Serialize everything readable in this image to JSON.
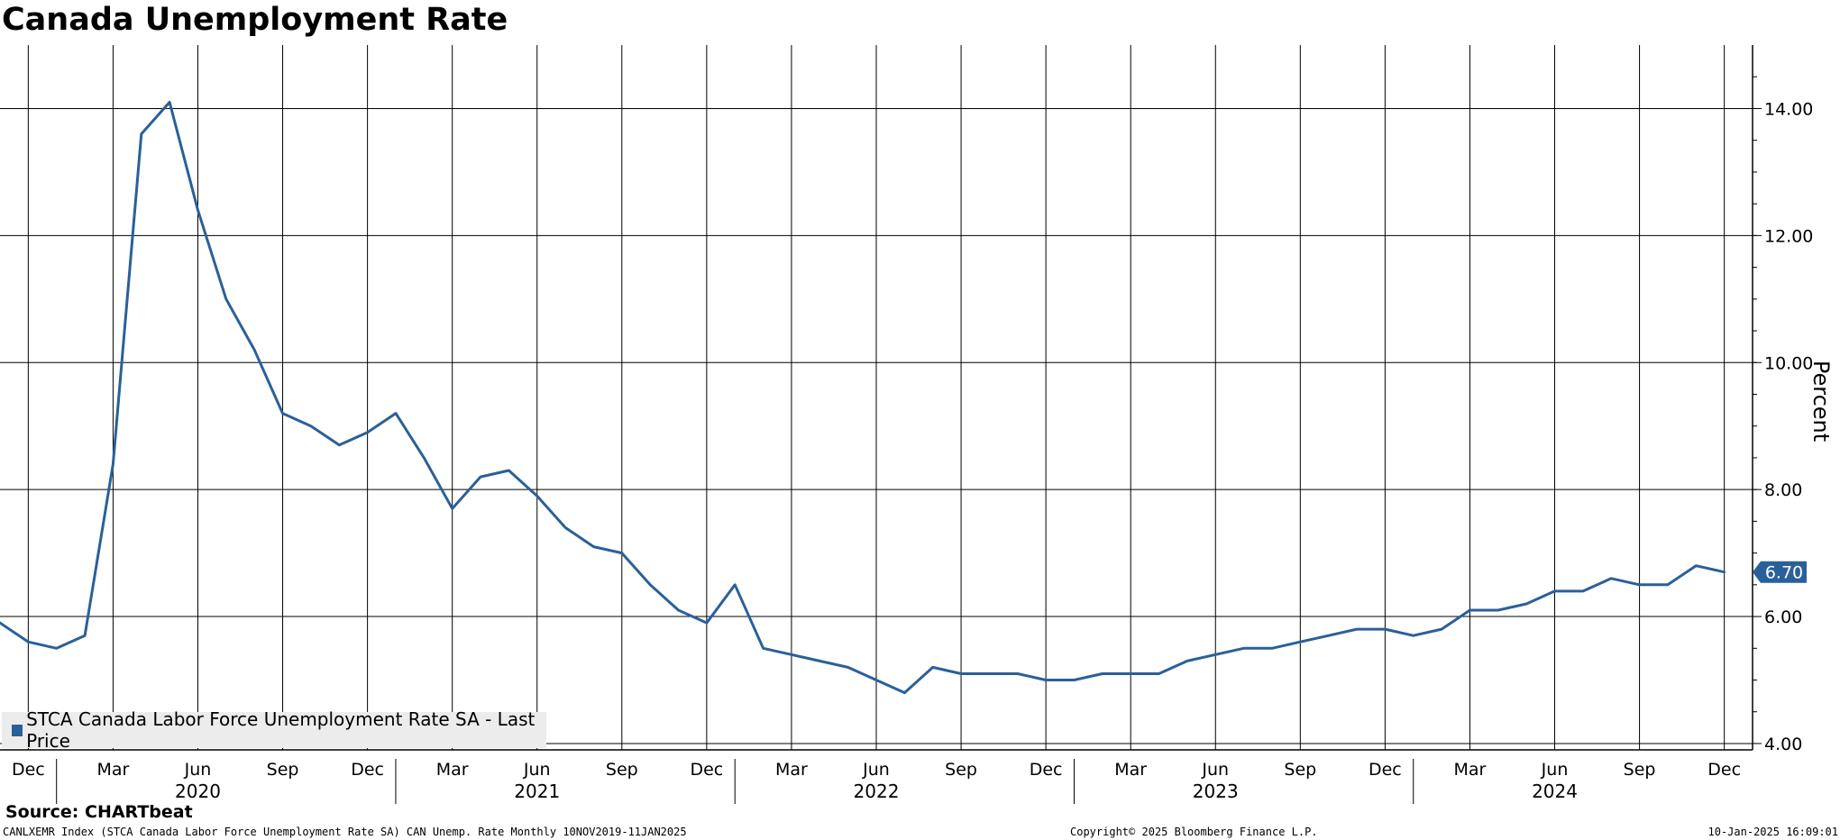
{
  "chart_data": {
    "type": "line",
    "title": "Canada Unemployment Rate",
    "ylabel": "Percent",
    "ylim": [
      3.9,
      15.0
    ],
    "y_ticks": [
      4,
      6,
      8,
      10,
      12,
      14
    ],
    "y_tick_labels": [
      "4.00",
      "6.00",
      "8.00",
      "10.00",
      "12.00",
      "14.00"
    ],
    "x_range": [
      "2019-11",
      "2025-01"
    ],
    "x_ticks": [
      {
        "date": "2019-12",
        "label": "Dec"
      },
      {
        "date": "2020-03",
        "label": "Mar"
      },
      {
        "date": "2020-06",
        "label": "Jun"
      },
      {
        "date": "2020-09",
        "label": "Sep"
      },
      {
        "date": "2020-12",
        "label": "Dec"
      },
      {
        "date": "2021-03",
        "label": "Mar"
      },
      {
        "date": "2021-06",
        "label": "Jun"
      },
      {
        "date": "2021-09",
        "label": "Sep"
      },
      {
        "date": "2021-12",
        "label": "Dec"
      },
      {
        "date": "2022-03",
        "label": "Mar"
      },
      {
        "date": "2022-06",
        "label": "Jun"
      },
      {
        "date": "2022-09",
        "label": "Sep"
      },
      {
        "date": "2022-12",
        "label": "Dec"
      },
      {
        "date": "2023-03",
        "label": "Mar"
      },
      {
        "date": "2023-06",
        "label": "Jun"
      },
      {
        "date": "2023-09",
        "label": "Sep"
      },
      {
        "date": "2023-12",
        "label": "Dec"
      },
      {
        "date": "2024-03",
        "label": "Mar"
      },
      {
        "date": "2024-06",
        "label": "Jun"
      },
      {
        "date": "2024-09",
        "label": "Sep"
      },
      {
        "date": "2024-12",
        "label": "Dec"
      }
    ],
    "year_labels": [
      {
        "date": "2020-06",
        "label": "2020"
      },
      {
        "date": "2021-06",
        "label": "2021"
      },
      {
        "date": "2022-06",
        "label": "2022"
      },
      {
        "date": "2023-06",
        "label": "2023"
      },
      {
        "date": "2024-06",
        "label": "2024"
      }
    ],
    "grid": true,
    "legend_position": "bottom-left",
    "last_value_label": "6.70",
    "series": [
      {
        "name": "STCA Canada Labor Force Unemployment Rate SA - Last Price",
        "color": "#2a6099",
        "x": [
          "2019-11",
          "2019-12",
          "2020-01",
          "2020-02",
          "2020-03",
          "2020-04",
          "2020-05",
          "2020-06",
          "2020-07",
          "2020-08",
          "2020-09",
          "2020-10",
          "2020-11",
          "2020-12",
          "2021-01",
          "2021-02",
          "2021-03",
          "2021-04",
          "2021-05",
          "2021-06",
          "2021-07",
          "2021-08",
          "2021-09",
          "2021-10",
          "2021-11",
          "2021-12",
          "2022-01",
          "2022-02",
          "2022-03",
          "2022-04",
          "2022-05",
          "2022-06",
          "2022-07",
          "2022-08",
          "2022-09",
          "2022-10",
          "2022-11",
          "2022-12",
          "2023-01",
          "2023-02",
          "2023-03",
          "2023-04",
          "2023-05",
          "2023-06",
          "2023-07",
          "2023-08",
          "2023-09",
          "2023-10",
          "2023-11",
          "2023-12",
          "2024-01",
          "2024-02",
          "2024-03",
          "2024-04",
          "2024-05",
          "2024-06",
          "2024-07",
          "2024-08",
          "2024-09",
          "2024-10",
          "2024-11",
          "2024-12"
        ],
        "values": [
          5.9,
          5.6,
          5.5,
          5.7,
          8.4,
          13.6,
          14.1,
          12.4,
          11.0,
          10.2,
          9.2,
          9.0,
          8.7,
          8.9,
          9.2,
          8.5,
          7.7,
          8.2,
          8.3,
          7.9,
          7.4,
          7.1,
          7.0,
          6.5,
          6.1,
          5.9,
          6.5,
          5.5,
          5.4,
          5.3,
          5.2,
          5.0,
          4.8,
          5.2,
          5.1,
          5.1,
          5.1,
          5.0,
          5.0,
          5.1,
          5.1,
          5.1,
          5.3,
          5.4,
          5.5,
          5.5,
          5.6,
          5.7,
          5.8,
          5.8,
          5.7,
          5.8,
          6.1,
          6.1,
          6.2,
          6.4,
          6.4,
          6.6,
          6.5,
          6.5,
          6.8,
          6.7
        ]
      }
    ]
  },
  "source": "Source: CHARTbeat",
  "footer": {
    "left": "CANLXEMR Index (STCA Canada Labor Force Unemployment Rate SA) CAN Unemp. Rate  Monthly 10NOV2019-11JAN2025",
    "center": "Copyright© 2025 Bloomberg Finance L.P.",
    "right": "10-Jan-2025 16:09:01"
  }
}
